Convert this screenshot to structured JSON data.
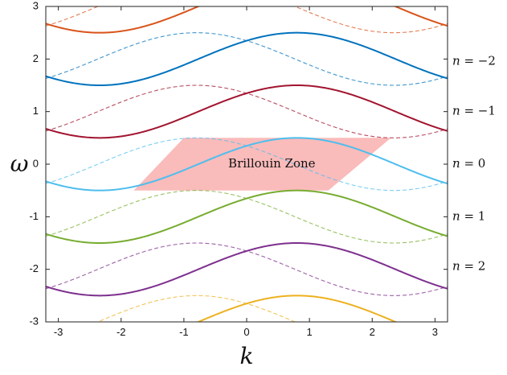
{
  "chart_data": {
    "type": "line",
    "title": "",
    "xlabel": "k",
    "ylabel": "ω",
    "xlim": [
      -3.2,
      3.2
    ],
    "ylim": [
      -3,
      3
    ],
    "xticks": [
      -3,
      -2,
      -1,
      0,
      1,
      2,
      3
    ],
    "yticks": [
      -3,
      -2,
      -1,
      0,
      1,
      2,
      3
    ],
    "xtick_labels": [
      "-3",
      "-2",
      "-1",
      "0",
      "1",
      "2",
      "3"
    ],
    "ytick_labels": [
      "-3",
      "-2",
      "-1",
      "0",
      "1",
      "2",
      "3"
    ],
    "grid": false,
    "annotation": "Brillouin Zone",
    "brillouin_zone": {
      "color": "#f9b4b4",
      "omega_range": [
        -0.5,
        0.5
      ],
      "bottom_k_range": [
        -1.8,
        1.3
      ],
      "top_k_range": [
        -1.0,
        2.3
      ]
    },
    "band_labels": [
      {
        "n_var": "n",
        "value": "−2",
        "omega": 1.95
      },
      {
        "n_var": "n",
        "value": "−1",
        "omega": 1.0
      },
      {
        "n_var": "n",
        "value": "0",
        "omega": 0.0
      },
      {
        "n_var": "n",
        "value": "1",
        "omega": -1.0
      },
      {
        "n_var": "n",
        "value": "2",
        "omega": -1.95
      }
    ],
    "model": {
      "omega0": 0.5,
      "phase_shift": 0.8,
      "samples": 321
    },
    "series": [
      {
        "n": -3,
        "offset": 3,
        "color": "#d95319"
      },
      {
        "n": -2,
        "offset": 2,
        "color": "#0072bd"
      },
      {
        "n": -1,
        "offset": 1,
        "color": "#a2142f"
      },
      {
        "n": 0,
        "offset": 0,
        "color": "#4dbeee"
      },
      {
        "n": 1,
        "offset": -1,
        "color": "#77ac30"
      },
      {
        "n": 2,
        "offset": -2,
        "color": "#7e2f8e"
      },
      {
        "n": 3,
        "offset": -3,
        "color": "#edb120"
      }
    ]
  }
}
